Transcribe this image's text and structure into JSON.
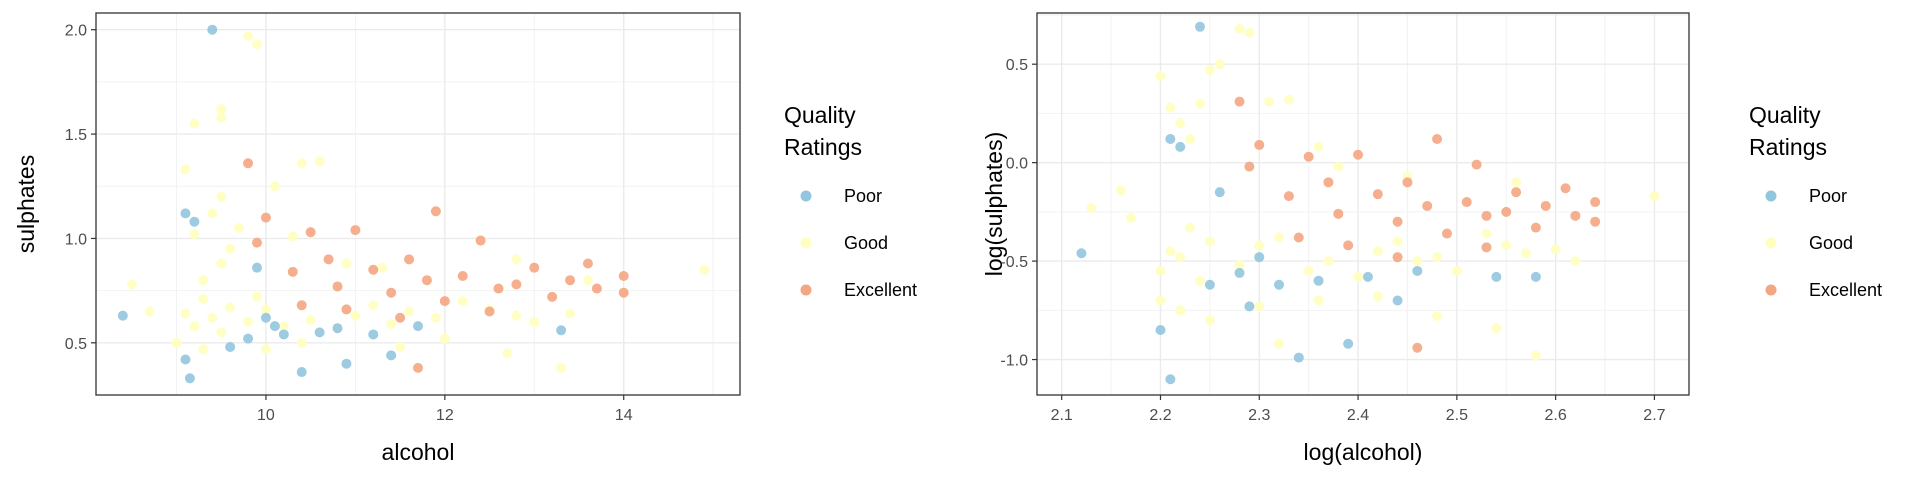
{
  "chart_data": [
    {
      "type": "scatter",
      "xlabel": "alcohol",
      "ylabel": "sulphates",
      "xlim": [
        8.1,
        15.3
      ],
      "ylim": [
        0.25,
        2.08
      ],
      "xticks": [
        10,
        12,
        14
      ],
      "yticks": [
        0.5,
        1.0,
        1.5,
        2.0
      ],
      "ytick_labels": [
        "0.5",
        "1.0",
        "1.5",
        "2.0"
      ],
      "grid": true,
      "legend_position": "right",
      "series": [
        {
          "name": "Good",
          "color": "#ffffbf",
          "points": [
            [
              9.2,
              0.58
            ],
            [
              9.4,
              0.62
            ],
            [
              9.5,
              0.55
            ],
            [
              9.6,
              0.67
            ],
            [
              9.3,
              0.71
            ],
            [
              9.1,
              0.64
            ],
            [
              9.8,
              0.6
            ],
            [
              9.9,
              0.72
            ],
            [
              10.0,
              0.66
            ],
            [
              10.2,
              0.58
            ],
            [
              10.5,
              0.61
            ],
            [
              10.8,
              0.57
            ],
            [
              11.0,
              0.63
            ],
            [
              11.2,
              0.68
            ],
            [
              11.4,
              0.59
            ],
            [
              11.6,
              0.65
            ],
            [
              11.9,
              0.62
            ],
            [
              12.2,
              0.7
            ],
            [
              12.5,
              0.66
            ],
            [
              12.8,
              0.63
            ],
            [
              13.0,
              0.6
            ],
            [
              13.4,
              0.64
            ],
            [
              9.3,
              0.8
            ],
            [
              9.5,
              0.88
            ],
            [
              9.6,
              0.95
            ],
            [
              9.2,
              1.02
            ],
            [
              9.4,
              1.12
            ],
            [
              9.5,
              1.2
            ],
            [
              9.1,
              1.33
            ],
            [
              9.2,
              1.55
            ],
            [
              9.5,
              1.58
            ],
            [
              9.5,
              1.62
            ],
            [
              9.8,
              1.97
            ],
            [
              9.9,
              1.93
            ],
            [
              10.4,
              1.36
            ],
            [
              10.6,
              1.37
            ],
            [
              10.1,
              1.25
            ],
            [
              10.3,
              1.01
            ],
            [
              9.7,
              1.05
            ],
            [
              10.9,
              0.88
            ],
            [
              11.3,
              0.86
            ],
            [
              12.8,
              0.9
            ],
            [
              13.6,
              0.8
            ],
            [
              14.9,
              0.85
            ],
            [
              9.0,
              0.5
            ],
            [
              9.3,
              0.47
            ],
            [
              10.0,
              0.47
            ],
            [
              10.4,
              0.5
            ],
            [
              11.5,
              0.48
            ],
            [
              12.0,
              0.52
            ],
            [
              12.7,
              0.45
            ],
            [
              13.3,
              0.38
            ],
            [
              8.5,
              0.78
            ],
            [
              8.7,
              0.65
            ]
          ]
        },
        {
          "name": "Poor",
          "color": "#92c5de",
          "points": [
            [
              8.4,
              0.63
            ],
            [
              9.1,
              0.42
            ],
            [
              9.15,
              0.33
            ],
            [
              9.4,
              2.0
            ],
            [
              9.1,
              1.12
            ],
            [
              9.2,
              1.08
            ],
            [
              9.6,
              0.48
            ],
            [
              9.9,
              0.86
            ],
            [
              10.0,
              0.62
            ],
            [
              10.2,
              0.54
            ],
            [
              10.4,
              0.36
            ],
            [
              10.6,
              0.55
            ],
            [
              10.9,
              0.4
            ],
            [
              11.2,
              0.54
            ],
            [
              11.4,
              0.44
            ],
            [
              11.7,
              0.58
            ],
            [
              13.3,
              0.56
            ],
            [
              9.8,
              0.52
            ],
            [
              10.1,
              0.58
            ],
            [
              10.8,
              0.57
            ]
          ]
        },
        {
          "name": "Excellent",
          "color": "#f4a582",
          "points": [
            [
              9.8,
              1.36
            ],
            [
              10.0,
              1.1
            ],
            [
              9.9,
              0.98
            ],
            [
              10.3,
              0.84
            ],
            [
              10.5,
              1.03
            ],
            [
              10.7,
              0.9
            ],
            [
              10.8,
              0.77
            ],
            [
              11.0,
              1.04
            ],
            [
              11.2,
              0.85
            ],
            [
              11.4,
              0.74
            ],
            [
              11.6,
              0.9
            ],
            [
              11.8,
              0.8
            ],
            [
              11.9,
              1.13
            ],
            [
              12.0,
              0.7
            ],
            [
              12.2,
              0.82
            ],
            [
              12.4,
              0.99
            ],
            [
              12.6,
              0.76
            ],
            [
              12.8,
              0.78
            ],
            [
              13.0,
              0.86
            ],
            [
              13.2,
              0.72
            ],
            [
              13.4,
              0.8
            ],
            [
              13.6,
              0.88
            ],
            [
              14.0,
              0.82
            ],
            [
              14.0,
              0.74
            ],
            [
              11.7,
              0.38
            ],
            [
              11.5,
              0.62
            ],
            [
              12.5,
              0.65
            ],
            [
              10.4,
              0.68
            ],
            [
              10.9,
              0.66
            ],
            [
              13.7,
              0.76
            ]
          ]
        }
      ]
    },
    {
      "type": "scatter",
      "xlabel": "log(alcohol)",
      "ylabel": "log(sulphates)",
      "xlim": [
        2.075,
        2.735
      ],
      "ylim": [
        -1.18,
        0.76
      ],
      "xticks": [
        2.1,
        2.2,
        2.3,
        2.4,
        2.5,
        2.6,
        2.7
      ],
      "xtick_labels": [
        "2.1",
        "2.2",
        "2.3",
        "2.4",
        "2.5",
        "2.6",
        "2.7"
      ],
      "yticks": [
        -1.0,
        -0.5,
        0.0,
        0.5
      ],
      "ytick_labels": [
        "-1.0",
        "-0.5",
        "0.0",
        "0.5"
      ],
      "grid": true,
      "legend_position": "right",
      "series": [
        {
          "name": "Good",
          "color": "#ffffbf",
          "points": [
            [
              2.2,
              -0.55
            ],
            [
              2.22,
              -0.48
            ],
            [
              2.24,
              -0.6
            ],
            [
              2.25,
              -0.4
            ],
            [
              2.23,
              -0.33
            ],
            [
              2.21,
              -0.45
            ],
            [
              2.28,
              -0.52
            ],
            [
              2.3,
              -0.42
            ],
            [
              2.32,
              -0.38
            ],
            [
              2.35,
              -0.55
            ],
            [
              2.37,
              -0.5
            ],
            [
              2.4,
              -0.58
            ],
            [
              2.42,
              -0.45
            ],
            [
              2.44,
              -0.4
            ],
            [
              2.46,
              -0.5
            ],
            [
              2.48,
              -0.48
            ],
            [
              2.5,
              -0.55
            ],
            [
              2.53,
              -0.36
            ],
            [
              2.55,
              -0.42
            ],
            [
              2.57,
              -0.46
            ],
            [
              2.6,
              -0.44
            ],
            [
              2.62,
              -0.5
            ],
            [
              2.23,
              0.12
            ],
            [
              2.22,
              0.2
            ],
            [
              2.24,
              0.3
            ],
            [
              2.25,
              0.47
            ],
            [
              2.26,
              0.5
            ],
            [
              2.28,
              0.68
            ],
            [
              2.29,
              0.66
            ],
            [
              2.21,
              0.28
            ],
            [
              2.2,
              0.44
            ],
            [
              2.31,
              0.31
            ],
            [
              2.33,
              0.32
            ],
            [
              2.36,
              0.08
            ],
            [
              2.38,
              -0.02
            ],
            [
              2.45,
              -0.07
            ],
            [
              2.56,
              -0.1
            ],
            [
              2.7,
              -0.17
            ],
            [
              2.13,
              -0.23
            ],
            [
              2.16,
              -0.14
            ],
            [
              2.17,
              -0.28
            ],
            [
              2.2,
              -0.7
            ],
            [
              2.22,
              -0.75
            ],
            [
              2.25,
              -0.8
            ],
            [
              2.3,
              -0.73
            ],
            [
              2.36,
              -0.7
            ],
            [
              2.42,
              -0.68
            ],
            [
              2.48,
              -0.78
            ],
            [
              2.54,
              -0.84
            ],
            [
              2.58,
              -0.98
            ],
            [
              2.32,
              -0.92
            ]
          ]
        },
        {
          "name": "Poor",
          "color": "#92c5de",
          "points": [
            [
              2.12,
              -0.46
            ],
            [
              2.2,
              -0.85
            ],
            [
              2.21,
              -1.1
            ],
            [
              2.24,
              0.69
            ],
            [
              2.21,
              0.12
            ],
            [
              2.22,
              0.08
            ],
            [
              2.26,
              -0.15
            ],
            [
              2.29,
              -0.73
            ],
            [
              2.3,
              -0.48
            ],
            [
              2.32,
              -0.62
            ],
            [
              2.34,
              -0.99
            ],
            [
              2.36,
              -0.6
            ],
            [
              2.39,
              -0.92
            ],
            [
              2.41,
              -0.58
            ],
            [
              2.44,
              -0.7
            ],
            [
              2.46,
              -0.55
            ],
            [
              2.54,
              -0.58
            ],
            [
              2.58,
              -0.58
            ],
            [
              2.25,
              -0.62
            ],
            [
              2.28,
              -0.56
            ]
          ]
        },
        {
          "name": "Excellent",
          "color": "#f4a582",
          "points": [
            [
              2.28,
              0.31
            ],
            [
              2.3,
              0.09
            ],
            [
              2.29,
              -0.02
            ],
            [
              2.33,
              -0.17
            ],
            [
              2.35,
              0.03
            ],
            [
              2.37,
              -0.1
            ],
            [
              2.38,
              -0.26
            ],
            [
              2.4,
              0.04
            ],
            [
              2.42,
              -0.16
            ],
            [
              2.44,
              -0.3
            ],
            [
              2.45,
              -0.1
            ],
            [
              2.47,
              -0.22
            ],
            [
              2.48,
              0.12
            ],
            [
              2.49,
              -0.36
            ],
            [
              2.51,
              -0.2
            ],
            [
              2.52,
              -0.01
            ],
            [
              2.53,
              -0.27
            ],
            [
              2.55,
              -0.25
            ],
            [
              2.56,
              -0.15
            ],
            [
              2.58,
              -0.33
            ],
            [
              2.59,
              -0.22
            ],
            [
              2.61,
              -0.13
            ],
            [
              2.64,
              -0.2
            ],
            [
              2.64,
              -0.3
            ],
            [
              2.46,
              -0.94
            ],
            [
              2.44,
              -0.48
            ],
            [
              2.53,
              -0.43
            ],
            [
              2.34,
              -0.38
            ],
            [
              2.39,
              -0.42
            ],
            [
              2.62,
              -0.27
            ]
          ]
        }
      ]
    }
  ],
  "legend": {
    "title_line1": "Quality",
    "title_line2": "Ratings",
    "items": [
      {
        "label": "Poor",
        "color": "#92c5de"
      },
      {
        "label": "Good",
        "color": "#ffffbf"
      },
      {
        "label": "Excellent",
        "color": "#f4a582"
      }
    ]
  }
}
